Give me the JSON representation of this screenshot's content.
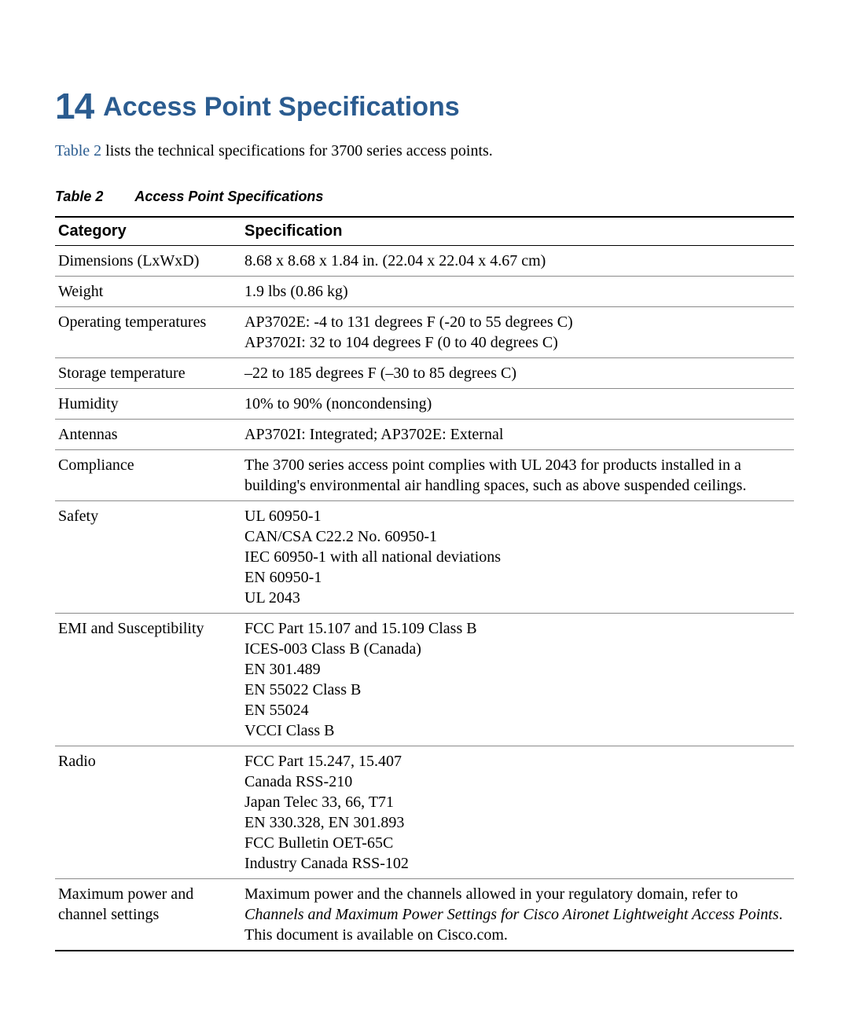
{
  "section_number": "14",
  "section_title": "Access Point Specifications",
  "intro_ref": "Table 2",
  "intro_rest": " lists the technical specifications for 3700 series access points.",
  "table_caption_label": "Table 2",
  "table_caption_text": "Access Point Specifications",
  "columns": [
    "Category",
    "Specification"
  ],
  "rows": [
    {
      "category": "Dimensions (LxWxD)",
      "lines": [
        "8.68 x 8.68 x 1.84 in. (22.04 x 22.04 x 4.67 cm)"
      ]
    },
    {
      "category": "Weight",
      "lines": [
        "1.9 lbs (0.86 kg)"
      ]
    },
    {
      "category": "Operating temperatures",
      "lines": [
        "AP3702E: -4 to 131 degrees F (-20 to 55 degrees C)",
        "AP3702I: 32 to 104 degrees F (0 to 40 degrees C)"
      ]
    },
    {
      "category": "Storage temperature",
      "lines": [
        "–22 to 185 degrees F (–30 to 85 degrees C)"
      ]
    },
    {
      "category": "Humidity",
      "lines": [
        "10% to 90% (noncondensing)"
      ]
    },
    {
      "category": "Antennas",
      "lines": [
        "AP3702I: Integrated; AP3702E: External"
      ]
    },
    {
      "category": "Compliance",
      "lines": [
        "The 3700 series access point complies with UL 2043 for products installed in a building's environmental air handling spaces, such as above suspended ceilings."
      ]
    },
    {
      "category": "Safety",
      "lines": [
        "UL 60950-1",
        "CAN/CSA C22.2 No. 60950-1",
        "IEC 60950-1 with all national deviations",
        "EN 60950-1",
        "UL 2043"
      ]
    },
    {
      "category": "EMI and Susceptibility",
      "lines": [
        "FCC Part 15.107 and 15.109 Class B",
        "ICES-003 Class B (Canada)",
        "EN 301.489",
        "EN 55022 Class B",
        "EN 55024",
        "VCCI Class B"
      ]
    },
    {
      "category": "Radio",
      "lines": [
        "FCC Part 15.247, 15.407",
        "Canada RSS-210",
        "Japan Telec 33, 66, T71",
        "EN 330.328, EN 301.893",
        "FCC Bulletin OET-65C",
        "Industry Canada RSS-102"
      ]
    },
    {
      "category": "Maximum power and channel settings",
      "spec_parts": [
        {
          "text": "Maximum power and the channels allowed in your regulatory domain, refer to ",
          "italic": false
        },
        {
          "text": "Channels and Maximum Power Settings for Cisco Aironet Lightweight Access Points",
          "italic": true
        },
        {
          "text": ". This document is available on Cisco.com.",
          "italic": false
        }
      ]
    }
  ],
  "colors": {
    "heading": "#2b5c90",
    "link": "#2b5c90",
    "text": "#000000",
    "row_border": "#8a8a8a"
  }
}
